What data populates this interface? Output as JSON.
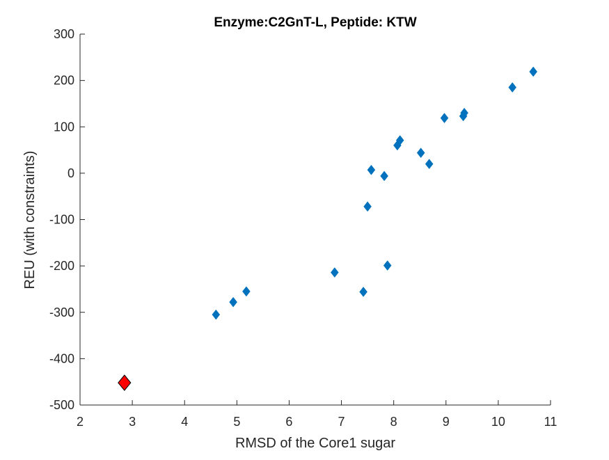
{
  "chart_data": {
    "type": "scatter",
    "title": "Enzyme:C2GnT-L, Peptide: KTW",
    "xlabel": "RMSD of the Core1 sugar",
    "ylabel": "REU (with constraints)",
    "xlim": [
      2,
      11
    ],
    "ylim": [
      -500,
      300
    ],
    "xticks": [
      "2",
      "3",
      "4",
      "5",
      "6",
      "7",
      "8",
      "9",
      "10",
      "11"
    ],
    "yticks": [
      "300",
      "200",
      "100",
      "0",
      "-100",
      "-200",
      "-300",
      "-400",
      "-500"
    ],
    "grid": false,
    "marker": "diamond",
    "series": [
      {
        "color": "#0072BD",
        "points": [
          [
            4.6,
            -305
          ],
          [
            4.93,
            -278
          ],
          [
            5.18,
            -255
          ],
          [
            6.87,
            -214
          ],
          [
            7.42,
            -256
          ],
          [
            7.5,
            -72
          ],
          [
            7.57,
            7
          ],
          [
            7.82,
            -6
          ],
          [
            7.88,
            -199
          ],
          [
            8.07,
            60
          ],
          [
            8.12,
            71
          ],
          [
            8.52,
            44
          ],
          [
            8.68,
            20
          ],
          [
            8.97,
            119
          ],
          [
            9.33,
            123
          ],
          [
            9.35,
            130
          ],
          [
            10.27,
            185
          ],
          [
            10.67,
            219
          ]
        ]
      },
      {
        "color": "#FF0000",
        "points": [
          [
            2.85,
            -452
          ]
        ]
      }
    ]
  }
}
